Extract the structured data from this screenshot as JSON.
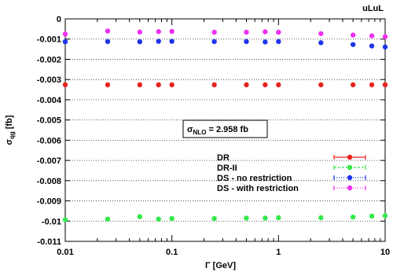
{
  "chart_data": {
    "type": "scatter",
    "corner_label": "uLuL",
    "ylabel": "σ",
    "ylabel_sub": "qg",
    "ylabel_unit": " [fb]",
    "xlabel": "Γ [GeV]",
    "x_scale": "log",
    "xlim": [
      0.01,
      10
    ],
    "ylim": [
      -0.011,
      0
    ],
    "x_ticks": [
      0.01,
      0.1,
      1,
      10
    ],
    "x_tick_labels": [
      "0.01",
      "0.1",
      "1",
      "10"
    ],
    "y_ticks": [
      0,
      -0.001,
      -0.002,
      -0.003,
      -0.004,
      -0.005,
      -0.006,
      -0.007,
      -0.008,
      -0.009,
      -0.01,
      -0.011
    ],
    "y_tick_labels": [
      "0",
      "-0.001",
      "-0.002",
      "-0.003",
      "-0.004",
      "-0.005",
      "-0.006",
      "-0.007",
      "-0.008",
      "-0.009",
      "-0.01",
      "-0.011"
    ],
    "grid": "horizontal dotted",
    "legend_position": "right-center",
    "annotation": {
      "prefix": "σ",
      "sub": "NLO",
      "suffix": " = 2.958 fb"
    },
    "x": [
      0.01,
      0.025,
      0.05,
      0.075,
      0.1,
      0.25,
      0.5,
      0.75,
      1,
      2.5,
      5,
      7.5,
      10
    ],
    "series": [
      {
        "name": "DR",
        "color": "#e8231e",
        "line": "solid",
        "values": [
          -0.00326,
          -0.00326,
          -0.00326,
          -0.00326,
          -0.00326,
          -0.00326,
          -0.00326,
          -0.00326,
          -0.00326,
          -0.00326,
          -0.00326,
          -0.00326,
          -0.00326
        ]
      },
      {
        "name": "DR-II",
        "color": "#33e84a",
        "line": "dashed",
        "values": [
          -0.00993,
          -0.0099,
          -0.00978,
          -0.0099,
          -0.00987,
          -0.00987,
          -0.00985,
          -0.00985,
          -0.00983,
          -0.00983,
          -0.0098,
          -0.00975,
          -0.00973
        ]
      },
      {
        "name": "DS - no restriction",
        "color": "#1d34e8",
        "line": "dotted",
        "values": [
          -0.00113,
          -0.00112,
          -0.00113,
          -0.00111,
          -0.00111,
          -0.00112,
          -0.00112,
          -0.00114,
          -0.00112,
          -0.00118,
          -0.00127,
          -0.00134,
          -0.00139
        ]
      },
      {
        "name": "DS - with restriction",
        "color": "#f030f0",
        "line": "dotted",
        "values": [
          -0.00075,
          -0.0006,
          -0.00065,
          -0.00063,
          -0.00062,
          -0.00066,
          -0.00066,
          -0.00064,
          -0.00066,
          -0.00073,
          -0.0008,
          -0.00084,
          -0.00088
        ]
      }
    ]
  }
}
